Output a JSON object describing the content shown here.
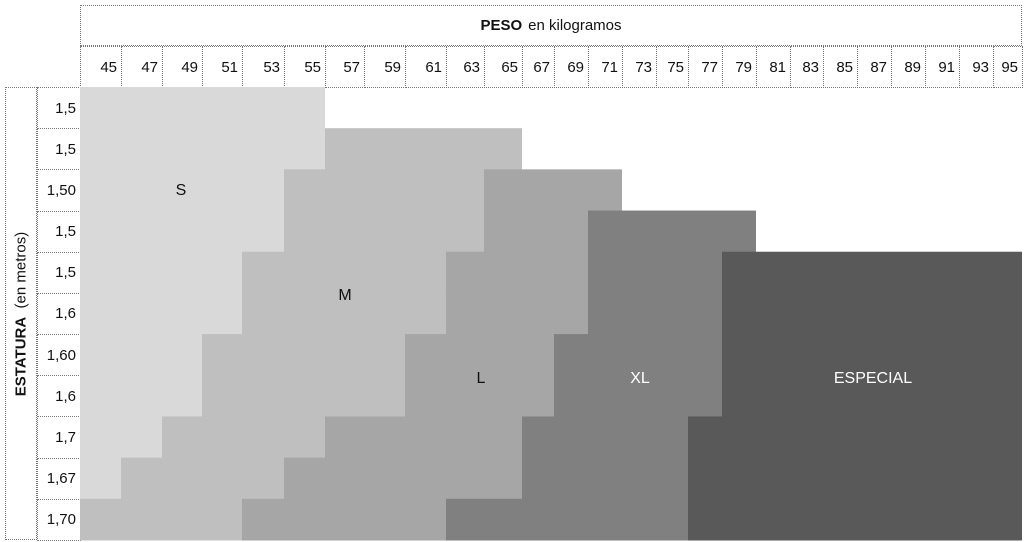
{
  "chart_data": {
    "type": "heatmap",
    "title": "PESO",
    "title_suffix": "en kilogramos",
    "ylabel": "ESTATURA",
    "ylabel_suffix": "(en metros)",
    "weights": [
      45,
      47,
      49,
      51,
      53,
      55,
      57,
      59,
      61,
      63,
      65,
      67,
      69,
      71,
      73,
      75,
      77,
      79,
      81,
      83,
      85,
      87,
      89,
      91,
      93,
      95
    ],
    "heights": [
      "1,5",
      "1,5",
      "1,50",
      "1,5",
      "1,5",
      "1,6",
      "1,60",
      "1,6",
      "1,7",
      "1,67",
      "1,70"
    ],
    "sizes": [
      {
        "name": "S",
        "color": "#d9d9d9",
        "text_color": "#111111"
      },
      {
        "name": "M",
        "color": "#bfbfbf",
        "text_color": "#111111"
      },
      {
        "name": "L",
        "color": "#a6a6a6",
        "text_color": "#111111"
      },
      {
        "name": "XL",
        "color": "#808080",
        "text_color": "#ffffff"
      },
      {
        "name": "ESPECIAL",
        "color": "#595959",
        "text_color": "#ffffff"
      }
    ],
    "rows": [
      [
        {
          "size": "S",
          "from": 45,
          "to": 55
        }
      ],
      [
        {
          "size": "S",
          "from": 45,
          "to": 55
        },
        {
          "size": "M",
          "from": 57,
          "to": 65
        }
      ],
      [
        {
          "size": "S",
          "from": 45,
          "to": 53
        },
        {
          "size": "M",
          "from": 55,
          "to": 63
        },
        {
          "size": "L",
          "from": 65,
          "to": 71
        }
      ],
      [
        {
          "size": "S",
          "from": 45,
          "to": 53
        },
        {
          "size": "M",
          "from": 55,
          "to": 63
        },
        {
          "size": "L",
          "from": 65,
          "to": 69
        },
        {
          "size": "XL",
          "from": 71,
          "to": 79
        }
      ],
      [
        {
          "size": "S",
          "from": 45,
          "to": 51
        },
        {
          "size": "M",
          "from": 53,
          "to": 61
        },
        {
          "size": "L",
          "from": 63,
          "to": 69
        },
        {
          "size": "XL",
          "from": 71,
          "to": 77
        },
        {
          "size": "ESPECIAL",
          "from": 79,
          "to": 95
        }
      ],
      [
        {
          "size": "S",
          "from": 45,
          "to": 51
        },
        {
          "size": "M",
          "from": 53,
          "to": 61
        },
        {
          "size": "L",
          "from": 63,
          "to": 69
        },
        {
          "size": "XL",
          "from": 71,
          "to": 77
        },
        {
          "size": "ESPECIAL",
          "from": 79,
          "to": 95
        }
      ],
      [
        {
          "size": "S",
          "from": 45,
          "to": 49
        },
        {
          "size": "M",
          "from": 51,
          "to": 59
        },
        {
          "size": "L",
          "from": 61,
          "to": 67
        },
        {
          "size": "XL",
          "from": 69,
          "to": 77
        },
        {
          "size": "ESPECIAL",
          "from": 79,
          "to": 95
        }
      ],
      [
        {
          "size": "S",
          "from": 45,
          "to": 49
        },
        {
          "size": "M",
          "from": 51,
          "to": 59
        },
        {
          "size": "L",
          "from": 61,
          "to": 67
        },
        {
          "size": "XL",
          "from": 69,
          "to": 77
        },
        {
          "size": "ESPECIAL",
          "from": 79,
          "to": 95
        }
      ],
      [
        {
          "size": "S",
          "from": 45,
          "to": 47
        },
        {
          "size": "M",
          "from": 49,
          "to": 55
        },
        {
          "size": "L",
          "from": 57,
          "to": 65
        },
        {
          "size": "XL",
          "from": 67,
          "to": 75
        },
        {
          "size": "ESPECIAL",
          "from": 77,
          "to": 95
        }
      ],
      [
        {
          "size": "S",
          "from": 45,
          "to": 45
        },
        {
          "size": "M",
          "from": 47,
          "to": 53
        },
        {
          "size": "L",
          "from": 55,
          "to": 65
        },
        {
          "size": "XL",
          "from": 67,
          "to": 75
        },
        {
          "size": "ESPECIAL",
          "from": 77,
          "to": 95
        }
      ],
      [
        {
          "size": "M",
          "from": 45,
          "to": 51
        },
        {
          "size": "L",
          "from": 53,
          "to": 61
        },
        {
          "size": "XL",
          "from": 63,
          "to": 75
        },
        {
          "size": "ESPECIAL",
          "from": 77,
          "to": 95
        }
      ]
    ]
  }
}
